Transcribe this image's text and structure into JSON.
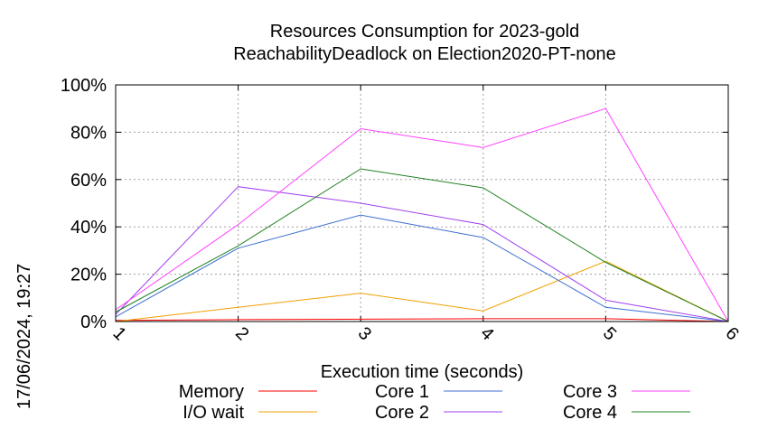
{
  "chart_data": {
    "type": "line",
    "title_lines": [
      "Resources Consumption for 2023-gold",
      "ReachabilityDeadlock on Election2020-PT-none"
    ],
    "xlabel": "Execution time (seconds)",
    "ylabel": "",
    "side_label": "17/06/2024, 19:27",
    "xlim": [
      1,
      6
    ],
    "ylim": [
      0,
      100
    ],
    "x_ticks": [
      "1",
      "2",
      "3",
      "4",
      "5",
      "6"
    ],
    "y_ticks": [
      "0%",
      "20%",
      "40%",
      "60%",
      "80%",
      "100%"
    ],
    "grid": true,
    "legend_position": "bottom",
    "x": [
      1,
      2,
      3,
      4,
      5,
      6
    ],
    "series": [
      {
        "name": "Memory",
        "color": "#ff0000",
        "values": [
          0.5,
          0.8,
          1.0,
          1.2,
          1.2,
          0.0
        ]
      },
      {
        "name": "I/O wait",
        "color": "#f0a000",
        "values": [
          0,
          6,
          12,
          4.5,
          25.5,
          0
        ]
      },
      {
        "name": "Core 1",
        "color": "#3c6fd2",
        "values": [
          2,
          31,
          45,
          35.5,
          6,
          0
        ]
      },
      {
        "name": "Core 2",
        "color": "#a040f0",
        "values": [
          3,
          57,
          50,
          41,
          9,
          0
        ]
      },
      {
        "name": "Core 3",
        "color": "#ff40ff",
        "values": [
          5,
          41,
          81.5,
          73.5,
          90,
          0
        ]
      },
      {
        "name": "Core 4",
        "color": "#208020",
        "values": [
          4,
          32,
          64.5,
          56.5,
          25,
          0
        ]
      }
    ]
  }
}
